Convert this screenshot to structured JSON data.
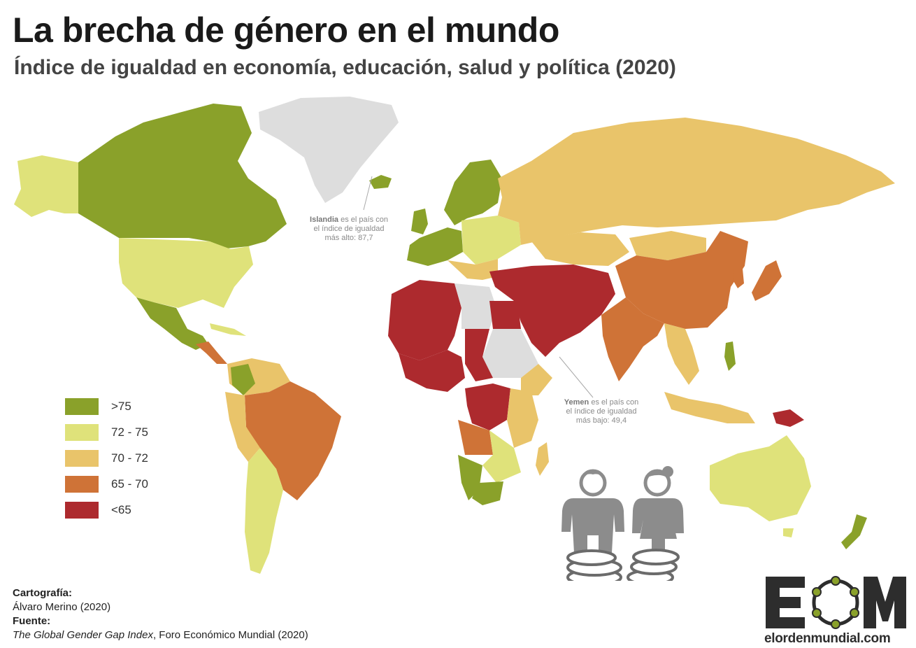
{
  "header": {
    "title": "La brecha de género en el mundo",
    "subtitle": "Índice de igualdad en economía, educación, salud y política (2020)"
  },
  "legend": {
    "items": [
      {
        "label": ">75",
        "color": "#8aa12a"
      },
      {
        "label": "72 - 75",
        "color": "#dfe27a"
      },
      {
        "label": "70 - 72",
        "color": "#e9c46a"
      },
      {
        "label": "65 - 70",
        "color": "#cf7337"
      },
      {
        "label": "<65",
        "color": "#ad2a2e"
      }
    ],
    "no_data_color": "#dddddd"
  },
  "annotations": {
    "iceland": {
      "name": "Islandia",
      "line1": "es el país con",
      "line2": "el índice de igualdad",
      "line3": "más alto: 87,7"
    },
    "yemen": {
      "name": "Yemen",
      "line1": "es el país con",
      "line2": "el índice de igualdad",
      "line3": "más bajo: 49,4"
    }
  },
  "credits": {
    "cartography_label": "Cartografía:",
    "cartography_value": "Álvaro Merino (2020)",
    "source_label": "Fuente:",
    "source_title": "The Global Gender Gap Index",
    "source_rest": ", Foro Económico Mundial (2020)"
  },
  "logo": {
    "letters": "EOM",
    "url": "elordenmundial.com",
    "color": "#2d2d2d",
    "accent": "#8aa12a"
  }
}
